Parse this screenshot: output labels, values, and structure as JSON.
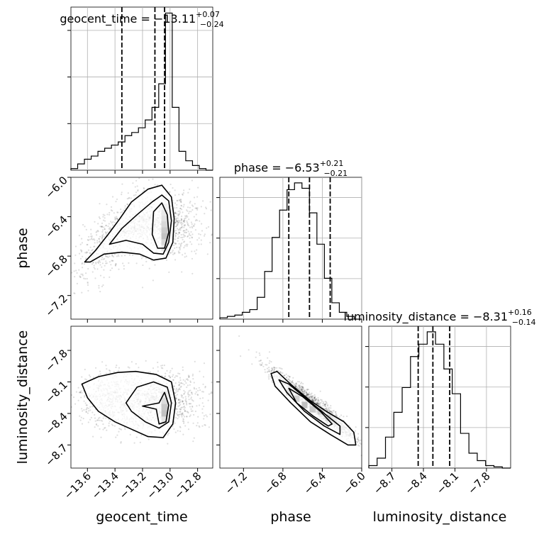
{
  "chart_data": {
    "type": "corner",
    "parameters": [
      "geocent_time",
      "phase",
      "luminosity_distance"
    ],
    "ranges": [
      [
        -13.72,
        -12.69
      ],
      [
        -7.44,
        -6.0
      ],
      [
        -8.92,
        -7.57
      ]
    ],
    "ticks": [
      [
        "−13.6",
        "−13.4",
        "−13.2",
        "−13.0",
        "−12.8"
      ],
      [
        "−7.2",
        "−6.8",
        "−6.4",
        "−6.0"
      ],
      [
        "−8.7",
        "−8.4",
        "−8.1",
        "−7.8"
      ]
    ],
    "tick_values": [
      [
        -13.6,
        -13.4,
        -13.2,
        -13.0,
        -12.8
      ],
      [
        -7.2,
        -6.8,
        -6.4,
        -6.0
      ],
      [
        -8.7,
        -8.4,
        -8.1,
        -7.8
      ]
    ],
    "titles": [
      {
        "lhs": "geocent_time = −13.11",
        "plus": "+0.07",
        "minus": "−0.24"
      },
      {
        "lhs": "phase = −6.53",
        "plus": "+0.21",
        "minus": "−0.21"
      },
      {
        "lhs": "luminosity_distance = −8.31",
        "plus": "+0.16",
        "minus": "−0.14"
      }
    ],
    "quantiles": [
      [
        -13.35,
        -13.11,
        -13.04
      ],
      [
        -6.74,
        -6.53,
        -6.32
      ],
      [
        -8.45,
        -8.31,
        -8.15
      ]
    ],
    "hist1d": [
      [
        1,
        4,
        7,
        9,
        12,
        14,
        16,
        18,
        22,
        24,
        27,
        32,
        40,
        55,
        100,
        40,
        12,
        6,
        3,
        1,
        0
      ],
      [
        1,
        2,
        3,
        5,
        7,
        16,
        35,
        60,
        80,
        95,
        100,
        96,
        78,
        55,
        30,
        12,
        5,
        2,
        0
      ],
      [
        2,
        8,
        25,
        45,
        65,
        90,
        100,
        110,
        100,
        80,
        60,
        28,
        12,
        6,
        2,
        1,
        0
      ]
    ],
    "contours": {
      "phase_vs_geocent_time": [
        [
          [
            -13.62,
            -6.86
          ],
          [
            -13.54,
            -6.74
          ],
          [
            -13.45,
            -6.58
          ],
          [
            -13.37,
            -6.43
          ],
          [
            -13.28,
            -6.25
          ],
          [
            -13.16,
            -6.12
          ],
          [
            -13.06,
            -6.08
          ],
          [
            -12.99,
            -6.2
          ],
          [
            -12.97,
            -6.42
          ],
          [
            -12.98,
            -6.66
          ],
          [
            -13.03,
            -6.82
          ],
          [
            -13.12,
            -6.84
          ],
          [
            -13.22,
            -6.78
          ],
          [
            -13.35,
            -6.76
          ],
          [
            -13.48,
            -6.78
          ],
          [
            -13.58,
            -6.86
          ],
          [
            -13.62,
            -6.86
          ]
        ],
        [
          [
            -13.44,
            -6.68
          ],
          [
            -13.35,
            -6.52
          ],
          [
            -13.24,
            -6.38
          ],
          [
            -13.13,
            -6.25
          ],
          [
            -13.06,
            -6.18
          ],
          [
            -13.01,
            -6.24
          ],
          [
            -12.99,
            -6.44
          ],
          [
            -13.01,
            -6.66
          ],
          [
            -13.05,
            -6.78
          ],
          [
            -13.12,
            -6.77
          ],
          [
            -13.2,
            -6.68
          ],
          [
            -13.32,
            -6.64
          ],
          [
            -13.44,
            -6.68
          ]
        ],
        [
          [
            -13.12,
            -6.35
          ],
          [
            -13.06,
            -6.26
          ],
          [
            -13.02,
            -6.38
          ],
          [
            -13.01,
            -6.56
          ],
          [
            -13.04,
            -6.72
          ],
          [
            -13.09,
            -6.72
          ],
          [
            -13.13,
            -6.58
          ],
          [
            -13.12,
            -6.35
          ]
        ]
      ],
      "luminosity_distance_vs_geocent_time": [
        [
          [
            -13.64,
            -8.12
          ],
          [
            -13.52,
            -8.05
          ],
          [
            -13.38,
            -8.01
          ],
          [
            -13.25,
            -8.0
          ],
          [
            -13.1,
            -8.03
          ],
          [
            -12.99,
            -8.1
          ],
          [
            -12.96,
            -8.3
          ],
          [
            -12.98,
            -8.5
          ],
          [
            -13.05,
            -8.63
          ],
          [
            -13.16,
            -8.62
          ],
          [
            -13.28,
            -8.55
          ],
          [
            -13.4,
            -8.48
          ],
          [
            -13.52,
            -8.38
          ],
          [
            -13.6,
            -8.25
          ],
          [
            -13.64,
            -8.12
          ]
        ],
        [
          [
            -13.32,
            -8.3
          ],
          [
            -13.24,
            -8.15
          ],
          [
            -13.12,
            -8.1
          ],
          [
            -13.02,
            -8.15
          ],
          [
            -12.99,
            -8.3
          ],
          [
            -13.01,
            -8.48
          ],
          [
            -13.08,
            -8.54
          ],
          [
            -13.18,
            -8.48
          ],
          [
            -13.28,
            -8.38
          ],
          [
            -13.32,
            -8.3
          ]
        ],
        [
          [
            -13.2,
            -8.33
          ],
          [
            -13.08,
            -8.3
          ],
          [
            -13.04,
            -8.2
          ],
          [
            -13.01,
            -8.32
          ],
          [
            -13.03,
            -8.48
          ],
          [
            -13.08,
            -8.5
          ],
          [
            -13.1,
            -8.36
          ],
          [
            -13.2,
            -8.33
          ]
        ]
      ],
      "luminosity_distance_vs_phase": [
        [
          [
            -6.92,
            -8.02
          ],
          [
            -6.86,
            -8.0
          ],
          [
            -6.7,
            -8.14
          ],
          [
            -6.52,
            -8.28
          ],
          [
            -6.36,
            -8.38
          ],
          [
            -6.18,
            -8.48
          ],
          [
            -6.08,
            -8.58
          ],
          [
            -6.06,
            -8.7
          ],
          [
            -6.14,
            -8.7
          ],
          [
            -6.32,
            -8.6
          ],
          [
            -6.52,
            -8.48
          ],
          [
            -6.72,
            -8.3
          ],
          [
            -6.88,
            -8.14
          ],
          [
            -6.92,
            -8.02
          ]
        ],
        [
          [
            -6.84,
            -8.08
          ],
          [
            -6.74,
            -8.12
          ],
          [
            -6.56,
            -8.26
          ],
          [
            -6.38,
            -8.4
          ],
          [
            -6.22,
            -8.52
          ],
          [
            -6.22,
            -8.6
          ],
          [
            -6.38,
            -8.52
          ],
          [
            -6.58,
            -8.38
          ],
          [
            -6.76,
            -8.2
          ],
          [
            -6.84,
            -8.08
          ]
        ],
        [
          [
            -6.74,
            -8.16
          ],
          [
            -6.6,
            -8.24
          ],
          [
            -6.42,
            -8.38
          ],
          [
            -6.3,
            -8.5
          ],
          [
            -6.34,
            -8.52
          ],
          [
            -6.5,
            -8.42
          ],
          [
            -6.66,
            -8.3
          ],
          [
            -6.74,
            -8.16
          ]
        ]
      ]
    },
    "density_cells": {
      "phase_vs_geocent_time": [
        [
          -13.04,
          -6.36,
          0.35
        ],
        [
          -13.04,
          -6.42,
          0.45
        ],
        [
          -13.04,
          -6.48,
          0.6
        ],
        [
          -13.04,
          -6.54,
          0.8
        ],
        [
          -13.04,
          -6.6,
          0.95
        ],
        [
          -13.04,
          -6.66,
          0.6
        ],
        [
          -13.04,
          -6.72,
          0.35
        ],
        [
          -13.04,
          -6.3,
          0.2
        ]
      ],
      "luminosity_distance_vs_geocent_time": [
        [
          -13.04,
          -8.22,
          0.3
        ],
        [
          -13.04,
          -8.28,
          0.55
        ],
        [
          -13.04,
          -8.34,
          0.85
        ],
        [
          -13.04,
          -8.4,
          0.95
        ],
        [
          -13.04,
          -8.46,
          0.4
        ]
      ],
      "luminosity_distance_vs_phase": [
        [
          -6.74,
          -8.2,
          0.45
        ],
        [
          -6.66,
          -8.26,
          0.7
        ],
        [
          -6.58,
          -8.32,
          1.0
        ],
        [
          -6.5,
          -8.36,
          0.85
        ],
        [
          -6.42,
          -8.38,
          0.8
        ],
        [
          -6.34,
          -8.44,
          0.7
        ],
        [
          -6.28,
          -8.48,
          0.35
        ]
      ]
    },
    "n_scatter_samples": 3000,
    "grid": true,
    "quantile_line_style": "dashed"
  }
}
